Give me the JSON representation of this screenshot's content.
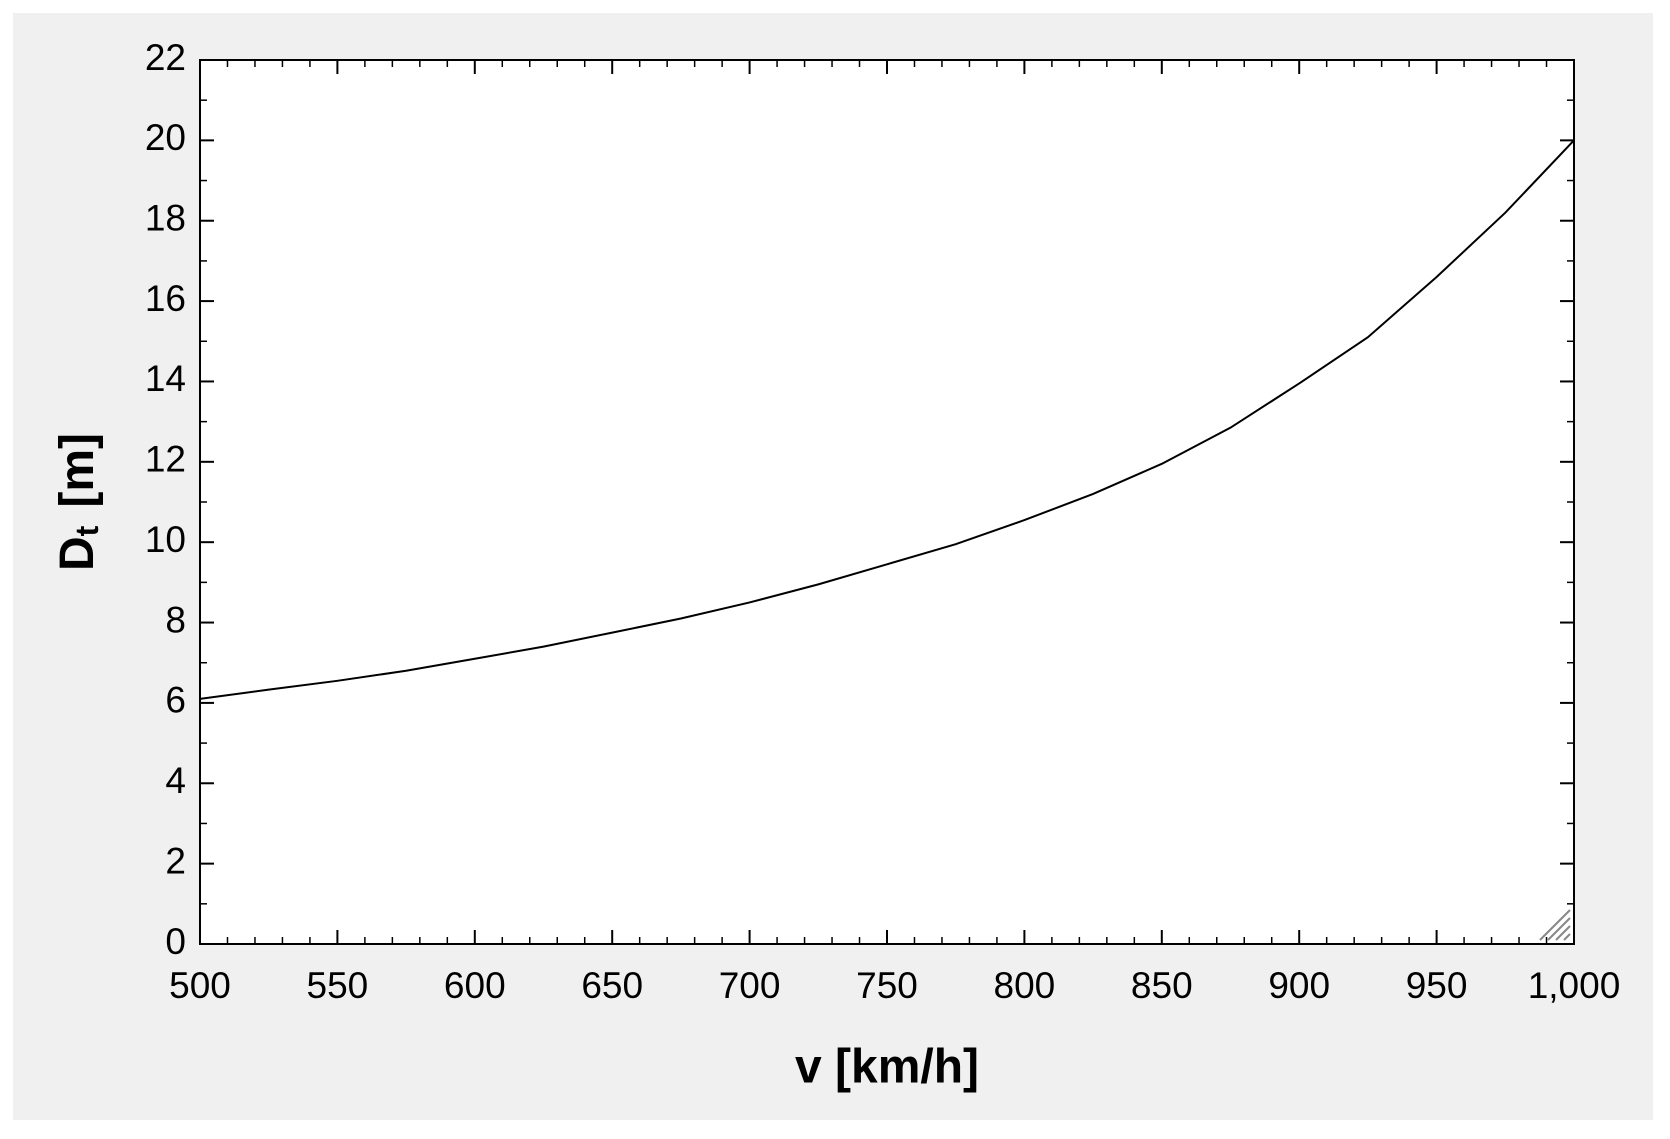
{
  "chart_data": {
    "type": "line",
    "xlabel": "v  [km/h]",
    "ylabel_main": "D",
    "ylabel_sub": "t",
    "ylabel_unit": "[m]",
    "x": [
      500,
      525,
      550,
      575,
      600,
      625,
      650,
      675,
      700,
      725,
      750,
      775,
      800,
      825,
      850,
      875,
      900,
      925,
      950,
      975,
      1000
    ],
    "series": [
      {
        "color": "#000000",
        "values": [
          6.1,
          6.33,
          6.55,
          6.8,
          7.1,
          7.4,
          7.75,
          8.1,
          8.5,
          8.95,
          9.45,
          9.95,
          10.55,
          11.2,
          11.95,
          12.85,
          13.95,
          15.1,
          16.6,
          18.2,
          20.0
        ]
      }
    ],
    "xlim": [
      500,
      1000
    ],
    "xticks": [
      500,
      550,
      600,
      650,
      700,
      750,
      800,
      850,
      900,
      950,
      {
        "value": 1000,
        "label": "1,000"
      }
    ],
    "ylim": [
      0,
      22
    ],
    "yticks": [
      0,
      2,
      4,
      6,
      8,
      10,
      12,
      14,
      16,
      18,
      20,
      22
    ]
  }
}
